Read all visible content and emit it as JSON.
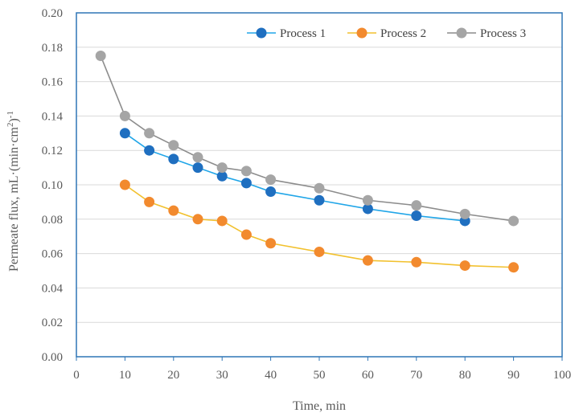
{
  "chart_data": {
    "type": "line",
    "title": "",
    "xlabel": "Time, min",
    "ylabel": "Permeate flux, mL·(min·cm²)⁻¹",
    "xlim": [
      0,
      100
    ],
    "ylim": [
      0,
      0.2
    ],
    "x_ticks": [
      0,
      10,
      20,
      30,
      40,
      50,
      60,
      70,
      80,
      90,
      100
    ],
    "y_ticks": [
      "0.00",
      "0.02",
      "0.04",
      "0.06",
      "0.08",
      "0.10",
      "0.12",
      "0.14",
      "0.16",
      "0.18",
      "0.20"
    ],
    "grid": "horizontal",
    "legend_position": "top-right",
    "series": [
      {
        "name": "Process 1",
        "color": "#1f6fc0",
        "line_color": "#21a6e8",
        "x": [
          10,
          15,
          20,
          25,
          30,
          35,
          40,
          50,
          60,
          70,
          80
        ],
        "y": [
          0.13,
          0.12,
          0.115,
          0.11,
          0.105,
          0.101,
          0.096,
          0.091,
          0.086,
          0.082,
          0.079
        ]
      },
      {
        "name": "Process 2",
        "color": "#f28a2e",
        "line_color": "#f2c12e",
        "x": [
          10,
          15,
          20,
          25,
          30,
          35,
          40,
          50,
          60,
          70,
          80,
          90
        ],
        "y": [
          0.1,
          0.09,
          0.085,
          0.08,
          0.079,
          0.071,
          0.066,
          0.061,
          0.056,
          0.055,
          0.053,
          0.052
        ]
      },
      {
        "name": "Process 3",
        "color": "#a5a5a5",
        "line_color": "#8c8c8c",
        "x": [
          5,
          10,
          15,
          20,
          25,
          30,
          35,
          40,
          50,
          60,
          70,
          80,
          90
        ],
        "y": [
          0.175,
          0.14,
          0.13,
          0.123,
          0.116,
          0.11,
          0.108,
          0.103,
          0.098,
          0.091,
          0.088,
          0.083,
          0.079
        ]
      }
    ]
  }
}
